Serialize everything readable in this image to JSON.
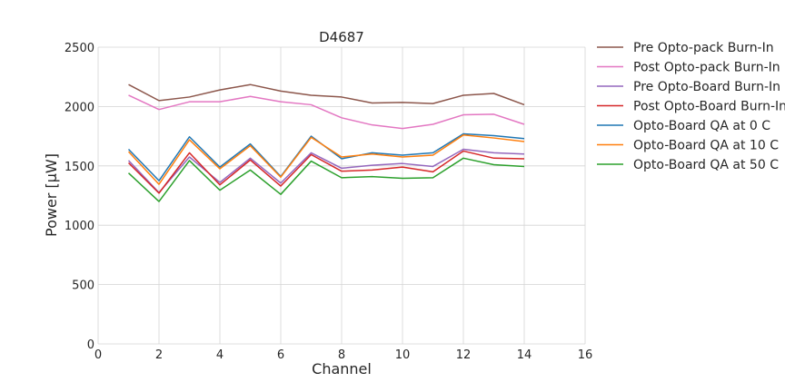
{
  "chart_data": {
    "type": "line",
    "title": "D4687",
    "xlabel": "Channel",
    "ylabel": "Power [μW]",
    "xlim": [
      0,
      16
    ],
    "ylim": [
      0,
      2500
    ],
    "xticks": [
      0,
      2,
      4,
      6,
      8,
      10,
      12,
      14,
      16
    ],
    "yticks": [
      0,
      500,
      1000,
      1500,
      2000,
      2500
    ],
    "grid": true,
    "legend_position": "outside-right",
    "x": [
      1,
      2,
      3,
      4,
      5,
      6,
      7,
      8,
      9,
      10,
      11,
      12,
      13,
      14
    ],
    "series": [
      {
        "name": "Pre Opto-pack Burn-In",
        "color": "#8c564b",
        "values": [
          2185,
          2050,
          2080,
          2140,
          2185,
          2130,
          2095,
          2080,
          2030,
          2035,
          2025,
          2095,
          2110,
          2015
        ]
      },
      {
        "name": "Post Opto-pack Burn-In",
        "color": "#e377c2",
        "values": [
          2095,
          1975,
          2040,
          2040,
          2085,
          2040,
          2015,
          1905,
          1845,
          1815,
          1850,
          1930,
          1935,
          1850
        ]
      },
      {
        "name": "Pre Opto-Board Burn-In",
        "color": "#9467bd",
        "values": [
          1545,
          1275,
          1575,
          1360,
          1565,
          1355,
          1610,
          1480,
          1505,
          1520,
          1495,
          1640,
          1610,
          1600
        ]
      },
      {
        "name": "Post Opto-Board Burn-In",
        "color": "#d62728",
        "values": [
          1525,
          1270,
          1610,
          1340,
          1550,
          1330,
          1595,
          1455,
          1465,
          1490,
          1450,
          1625,
          1565,
          1560
        ]
      },
      {
        "name": "Opto-Board QA at 0 C",
        "color": "#1f77b4",
        "values": [
          1640,
          1375,
          1745,
          1490,
          1685,
          1410,
          1750,
          1560,
          1610,
          1590,
          1610,
          1770,
          1755,
          1730
        ]
      },
      {
        "name": "Opto-Board QA at 10 C",
        "color": "#ff7f0e",
        "values": [
          1620,
          1345,
          1720,
          1475,
          1670,
          1405,
          1740,
          1575,
          1600,
          1575,
          1590,
          1760,
          1735,
          1705
        ]
      },
      {
        "name": "Opto-Board QA at 50 C",
        "color": "#2ca02c",
        "values": [
          1440,
          1200,
          1545,
          1295,
          1465,
          1260,
          1540,
          1400,
          1410,
          1395,
          1400,
          1565,
          1510,
          1495
        ]
      }
    ]
  }
}
